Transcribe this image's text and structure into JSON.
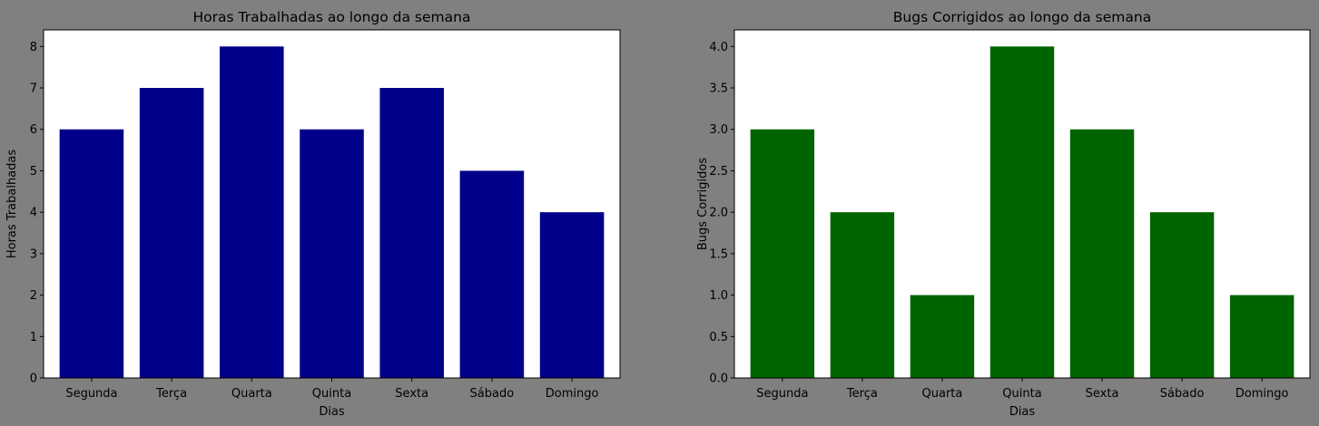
{
  "chart_data": [
    {
      "type": "bar",
      "title": "Horas Trabalhadas ao longo da semana",
      "xlabel": "Dias",
      "ylabel": "Horas Trabalhadas",
      "categories": [
        "Segunda",
        "Terça",
        "Quarta",
        "Quinta",
        "Sexta",
        "Sábado",
        "Domingo"
      ],
      "values": [
        6,
        7,
        8,
        6,
        7,
        5,
        4
      ],
      "ylim": [
        0,
        8.4
      ],
      "yticks": [
        0,
        1,
        2,
        3,
        4,
        5,
        6,
        7,
        8
      ],
      "ytick_labels": [
        "0",
        "1",
        "2",
        "3",
        "4",
        "5",
        "6",
        "7",
        "8"
      ],
      "color": "#00008b",
      "grid": false
    },
    {
      "type": "bar",
      "title": "Bugs Corrigidos ao longo da semana",
      "xlabel": "Dias",
      "ylabel": "Bugs Corrigidos",
      "categories": [
        "Segunda",
        "Terça",
        "Quarta",
        "Quinta",
        "Sexta",
        "Sábado",
        "Domingo"
      ],
      "values": [
        3,
        2,
        1,
        4,
        3,
        2,
        1
      ],
      "ylim": [
        0,
        4.2
      ],
      "yticks": [
        0,
        0.5,
        1,
        1.5,
        2,
        2.5,
        3,
        3.5,
        4
      ],
      "ytick_labels": [
        "0.0",
        "0.5",
        "1.0",
        "1.5",
        "2.0",
        "2.5",
        "3.0",
        "3.5",
        "4.0"
      ],
      "color": "#006400",
      "grid": false
    }
  ],
  "figure": {
    "background": "#808080",
    "axes_background": "#ffffff"
  }
}
